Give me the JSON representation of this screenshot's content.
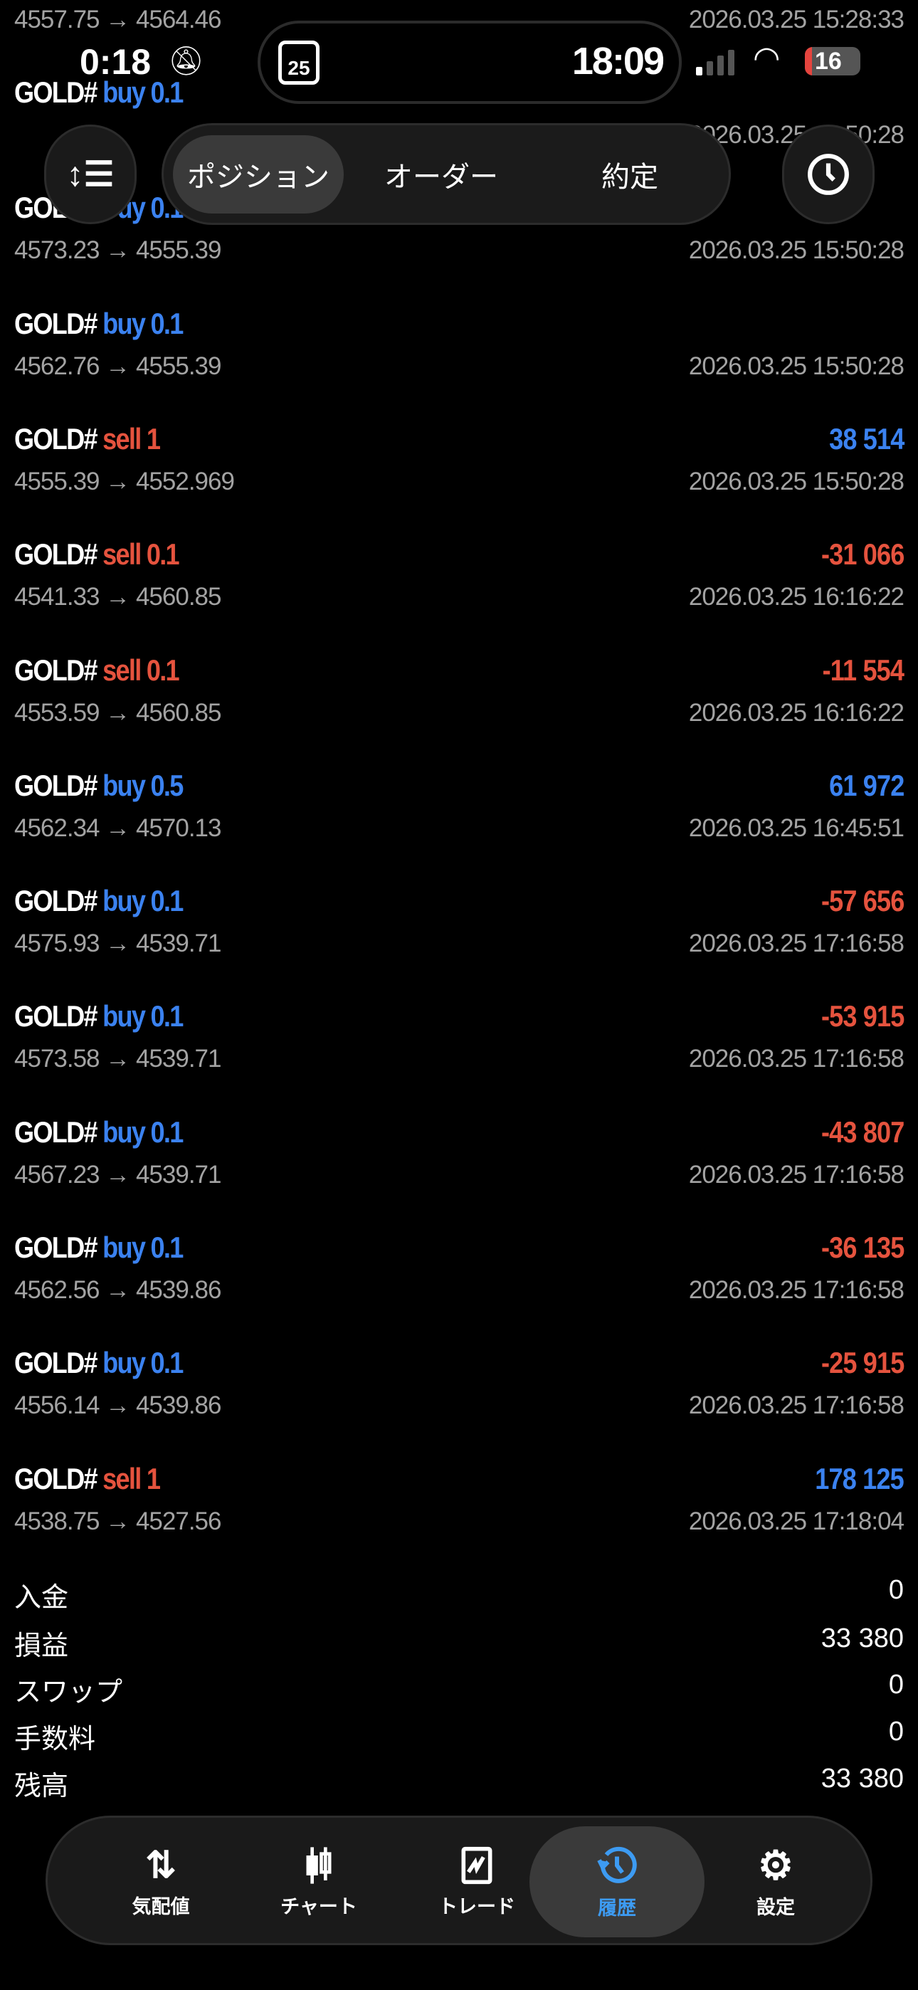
{
  "status_bar": {
    "time": "0:18",
    "island_time": "18:09",
    "calendar_day": "25",
    "battery": "16"
  },
  "toolbar": {
    "segments": [
      {
        "label": "ポジション",
        "active": true
      },
      {
        "label": "オーダー"
      },
      {
        "label": "約定"
      }
    ],
    "sort_icon": "sort-icon",
    "history_icon": "clock-icon"
  },
  "colors": {
    "buy": "#3b82f0",
    "sell": "#e5533e",
    "profit_positive": "#3b82f0",
    "profit_negative": "#e5533e",
    "accent": "#3d9bf2"
  },
  "deals": [
    {
      "symbol": "",
      "side": "",
      "volume": "",
      "prices": "4557.75 → 4564.46",
      "date": "2026.03.25 15:28:33",
      "profit": ""
    },
    {
      "symbol": "GOLD#",
      "side": "buy",
      "volume": "0.1",
      "prices": "",
      "date": "2026.03.25 15:50:28",
      "profit": ""
    },
    {
      "symbol": "GOLD#",
      "side": "buy",
      "volume": "0.1",
      "prices": "4573.23 → 4555.39",
      "date": "2026.03.25 15:50:28",
      "profit": ""
    },
    {
      "symbol": "GOLD#",
      "side": "buy",
      "volume": "0.1",
      "prices": "4562.76 → 4555.39",
      "date": "2026.03.25 15:50:28",
      "profit": ""
    },
    {
      "symbol": "GOLD#",
      "side": "sell",
      "volume": "1",
      "prices": "4555.39 → 4552.969",
      "date": "2026.03.25 15:50:28",
      "profit": "38 514",
      "positive": true
    },
    {
      "symbol": "GOLD#",
      "side": "sell",
      "volume": "0.1",
      "prices": "4541.33 → 4560.85",
      "date": "2026.03.25 16:16:22",
      "profit": "-31 066",
      "positive": false
    },
    {
      "symbol": "GOLD#",
      "side": "sell",
      "volume": "0.1",
      "prices": "4553.59 → 4560.85",
      "date": "2026.03.25 16:16:22",
      "profit": "-11 554",
      "positive": false
    },
    {
      "symbol": "GOLD#",
      "side": "buy",
      "volume": "0.5",
      "prices": "4562.34 → 4570.13",
      "date": "2026.03.25 16:45:51",
      "profit": "61 972",
      "positive": true
    },
    {
      "symbol": "GOLD#",
      "side": "buy",
      "volume": "0.1",
      "prices": "4575.93 → 4539.71",
      "date": "2026.03.25 17:16:58",
      "profit": "-57 656",
      "positive": false
    },
    {
      "symbol": "GOLD#",
      "side": "buy",
      "volume": "0.1",
      "prices": "4573.58 → 4539.71",
      "date": "2026.03.25 17:16:58",
      "profit": "-53 915",
      "positive": false
    },
    {
      "symbol": "GOLD#",
      "side": "buy",
      "volume": "0.1",
      "prices": "4567.23 → 4539.71",
      "date": "2026.03.25 17:16:58",
      "profit": "-43 807",
      "positive": false
    },
    {
      "symbol": "GOLD#",
      "side": "buy",
      "volume": "0.1",
      "prices": "4562.56 → 4539.86",
      "date": "2026.03.25 17:16:58",
      "profit": "-36 135",
      "positive": false
    },
    {
      "symbol": "GOLD#",
      "side": "buy",
      "volume": "0.1",
      "prices": "4556.14 → 4539.86",
      "date": "2026.03.25 17:16:58",
      "profit": "-25 915",
      "positive": false
    },
    {
      "symbol": "GOLD#",
      "side": "sell",
      "volume": "1",
      "prices": "4538.75 → 4527.56",
      "date": "2026.03.25 17:18:04",
      "profit": "178 125",
      "positive": true
    }
  ],
  "summary": [
    {
      "label": "入金",
      "value": "0"
    },
    {
      "label": "損益",
      "value": "33 380"
    },
    {
      "label": "スワップ",
      "value": "0"
    },
    {
      "label": "手数料",
      "value": "0"
    },
    {
      "label": "残高",
      "value": "33 380"
    }
  ],
  "nav": [
    {
      "label": "気配値",
      "icon": "quotes-icon"
    },
    {
      "label": "チャート",
      "icon": "chart-icon"
    },
    {
      "label": "トレード",
      "icon": "trade-icon"
    },
    {
      "label": "履歴",
      "icon": "history-icon",
      "active": true
    },
    {
      "label": "設定",
      "icon": "settings-icon"
    }
  ]
}
